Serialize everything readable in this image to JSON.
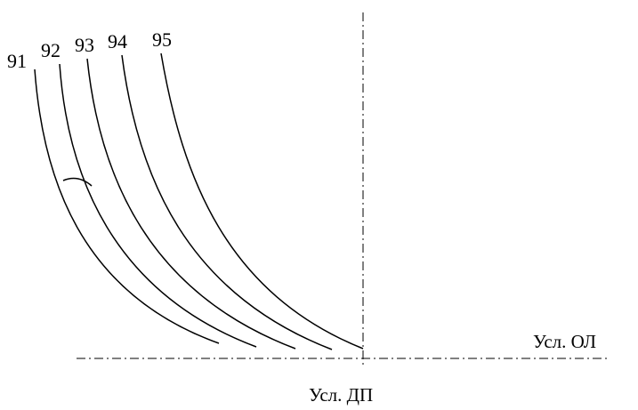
{
  "diagram": {
    "curves": [
      {
        "label": "91"
      },
      {
        "label": "92"
      },
      {
        "label": "93"
      },
      {
        "label": "94"
      },
      {
        "label": "95"
      }
    ],
    "horizontal_axis_label": "Усл. ОЛ",
    "vertical_axis_label": "Усл. ДП"
  }
}
